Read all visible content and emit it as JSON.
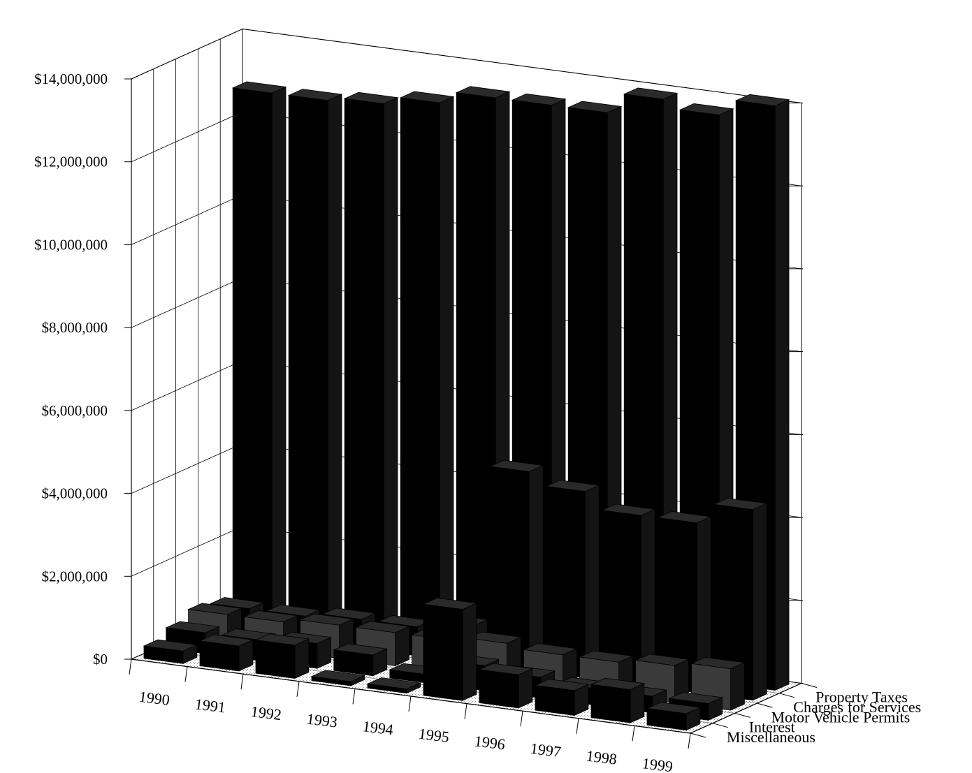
{
  "chart_data": {
    "type": "bar",
    "subtype": "3d-column",
    "title": "",
    "xlabel": "",
    "ylabel": "",
    "ylim": [
      0,
      14000000
    ],
    "y_tick_labels": [
      "$0",
      "$2,000,000",
      "$4,000,000",
      "$6,000,000",
      "$8,000,000",
      "$10,000,000",
      "$12,000,000",
      "$14,000,000"
    ],
    "y_tick_values": [
      0,
      2000000,
      4000000,
      6000000,
      8000000,
      10000000,
      12000000,
      14000000
    ],
    "categories": [
      "1990",
      "1991",
      "1992",
      "1993",
      "1994",
      "1995",
      "1996",
      "1997",
      "1998",
      "1999"
    ],
    "grid": true,
    "series": [
      {
        "name": "Miscellaneous",
        "color": "#000000",
        "values": [
          300000,
          600000,
          800000,
          100000,
          100000,
          2200000,
          800000,
          600000,
          800000,
          400000
        ]
      },
      {
        "name": "Interest",
        "color": "#000000",
        "values": [
          500000,
          500000,
          600000,
          500000,
          200000,
          600000,
          500000,
          400000,
          400000,
          400000
        ]
      },
      {
        "name": "Motor Vehicle Permits",
        "color": "#3a3a3a",
        "values": [
          700000,
          700000,
          800000,
          800000,
          800000,
          900000,
          800000,
          800000,
          900000,
          1000000
        ]
      },
      {
        "name": "Charges for Services",
        "color": "#000000",
        "values": [
          600000,
          600000,
          700000,
          700000,
          900000,
          4800000,
          4500000,
          4100000,
          4100000,
          4600000
        ]
      },
      {
        "name": "Property Taxes",
        "color": "#000000",
        "values": [
          12800000,
          12800000,
          12900000,
          13100000,
          13400000,
          13400000,
          13400000,
          13900000,
          13700000,
          14100000
        ]
      }
    ]
  }
}
